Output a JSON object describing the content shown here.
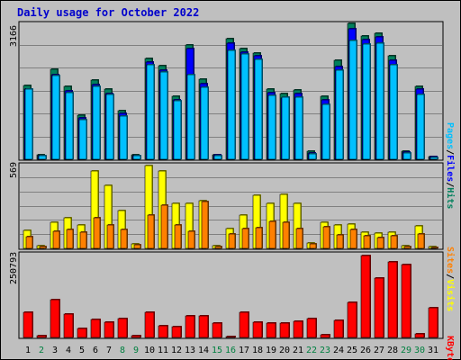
{
  "title": "Daily usage for October 2022",
  "colors": {
    "hits": "#00805c",
    "files": "#0000ff",
    "pages": "#00c0ff",
    "visits": "#ffff00",
    "sites": "#ff8000",
    "kbytes": "#ff0000",
    "weekday_label": "#000000",
    "weekend_label": "#008040"
  },
  "chart_data": [
    {
      "type": "bar",
      "panel": "top",
      "max_label": "3166",
      "ylim": [
        0,
        3166
      ],
      "legend": [
        {
          "text": "Pages",
          "color": "#00c0ff"
        },
        {
          "text": "Files",
          "color": "#0000ff"
        },
        {
          "text": "Hits",
          "color": "#00805c"
        }
      ],
      "categories": [
        "1",
        "2",
        "3",
        "4",
        "5",
        "6",
        "7",
        "8",
        "9",
        "10",
        "11",
        "12",
        "13",
        "14",
        "15",
        "16",
        "17",
        "18",
        "19",
        "20",
        "21",
        "22",
        "23",
        "24",
        "25",
        "26",
        "27",
        "28",
        "29",
        "30",
        "31"
      ],
      "series": [
        {
          "name": "Hits",
          "values": [
            1750,
            100,
            2130,
            1720,
            1050,
            1870,
            1660,
            1140,
            100,
            2390,
            2220,
            1480,
            2700,
            1890,
            110,
            2850,
            2620,
            2510,
            1660,
            1560,
            1640,
            200,
            1480,
            2330,
            3210,
            2910,
            2980,
            2450,
            190,
            1720,
            70
          ]
        },
        {
          "name": "Files",
          "values": [
            1660,
            90,
            2000,
            1620,
            980,
            1760,
            1560,
            1080,
            90,
            2290,
            2110,
            1410,
            2620,
            1790,
            100,
            2740,
            2520,
            2450,
            1580,
            1450,
            1560,
            150,
            1400,
            2190,
            3080,
            2820,
            2890,
            2340,
            170,
            1650,
            60
          ]
        },
        {
          "name": "Pages",
          "values": [
            1660,
            80,
            1970,
            1570,
            930,
            1730,
            1530,
            1020,
            80,
            2230,
            2060,
            1380,
            2000,
            1700,
            90,
            2570,
            2480,
            2350,
            1500,
            1460,
            1460,
            120,
            1300,
            2100,
            2800,
            2730,
            2740,
            2230,
            150,
            1530,
            50
          ]
        }
      ]
    },
    {
      "type": "bar",
      "panel": "middle",
      "max_label": "569",
      "ylim": [
        0,
        569
      ],
      "legend": [
        {
          "text": "Sites",
          "color": "#ff8000"
        },
        {
          "text": "Visits",
          "color": "#ffff00"
        }
      ],
      "categories": [
        "1",
        "2",
        "3",
        "4",
        "5",
        "6",
        "7",
        "8",
        "9",
        "10",
        "11",
        "12",
        "13",
        "14",
        "15",
        "16",
        "17",
        "18",
        "19",
        "20",
        "21",
        "22",
        "23",
        "24",
        "25",
        "26",
        "27",
        "28",
        "29",
        "30",
        "31"
      ],
      "series": [
        {
          "name": "Visits",
          "values": [
            125,
            20,
            180,
            210,
            160,
            540,
            440,
            260,
            30,
            575,
            540,
            315,
            315,
            330,
            20,
            140,
            230,
            370,
            310,
            375,
            315,
            35,
            180,
            165,
            170,
            115,
            105,
            115,
            20,
            155,
            10
          ]
        },
        {
          "name": "Sites",
          "values": [
            80,
            15,
            120,
            130,
            110,
            210,
            160,
            130,
            25,
            230,
            300,
            165,
            120,
            325,
            15,
            100,
            140,
            145,
            185,
            180,
            135,
            30,
            150,
            95,
            130,
            90,
            75,
            85,
            15,
            100,
            5
          ]
        }
      ]
    },
    {
      "type": "bar",
      "panel": "bottom",
      "max_label": "250793",
      "ylim": [
        0,
        250793
      ],
      "legend": [
        {
          "text": "KBytes",
          "color": "#ff0000"
        }
      ],
      "categories": [
        "1",
        "2",
        "3",
        "4",
        "5",
        "6",
        "7",
        "8",
        "9",
        "10",
        "11",
        "12",
        "13",
        "14",
        "15",
        "16",
        "17",
        "18",
        "19",
        "20",
        "21",
        "22",
        "23",
        "24",
        "25",
        "26",
        "27",
        "28",
        "29",
        "30",
        "31"
      ],
      "series": [
        {
          "name": "KBytes",
          "values": [
            77000,
            5000,
            115000,
            73000,
            27000,
            55000,
            48000,
            58000,
            5000,
            77000,
            37000,
            33000,
            65000,
            65000,
            44000,
            1000,
            77000,
            47000,
            43000,
            43000,
            50000,
            59000,
            9000,
            53000,
            107000,
            250000,
            183000,
            232000,
            223000,
            12000,
            92000
          ]
        }
      ]
    }
  ],
  "days": [
    {
      "label": "1",
      "weekend": false
    },
    {
      "label": "2",
      "weekend": true
    },
    {
      "label": "3",
      "weekend": false
    },
    {
      "label": "4",
      "weekend": false
    },
    {
      "label": "5",
      "weekend": false
    },
    {
      "label": "6",
      "weekend": false
    },
    {
      "label": "7",
      "weekend": false
    },
    {
      "label": "8",
      "weekend": true
    },
    {
      "label": "9",
      "weekend": true
    },
    {
      "label": "10",
      "weekend": false
    },
    {
      "label": "11",
      "weekend": false
    },
    {
      "label": "12",
      "weekend": false
    },
    {
      "label": "13",
      "weekend": false
    },
    {
      "label": "14",
      "weekend": false
    },
    {
      "label": "15",
      "weekend": true
    },
    {
      "label": "16",
      "weekend": true
    },
    {
      "label": "17",
      "weekend": false
    },
    {
      "label": "18",
      "weekend": false
    },
    {
      "label": "19",
      "weekend": false
    },
    {
      "label": "20",
      "weekend": false
    },
    {
      "label": "21",
      "weekend": false
    },
    {
      "label": "22",
      "weekend": true
    },
    {
      "label": "23",
      "weekend": true
    },
    {
      "label": "24",
      "weekend": false
    },
    {
      "label": "25",
      "weekend": false
    },
    {
      "label": "26",
      "weekend": false
    },
    {
      "label": "27",
      "weekend": false
    },
    {
      "label": "28",
      "weekend": false
    },
    {
      "label": "29",
      "weekend": true
    },
    {
      "label": "30",
      "weekend": true
    },
    {
      "label": "31",
      "weekend": false
    }
  ]
}
